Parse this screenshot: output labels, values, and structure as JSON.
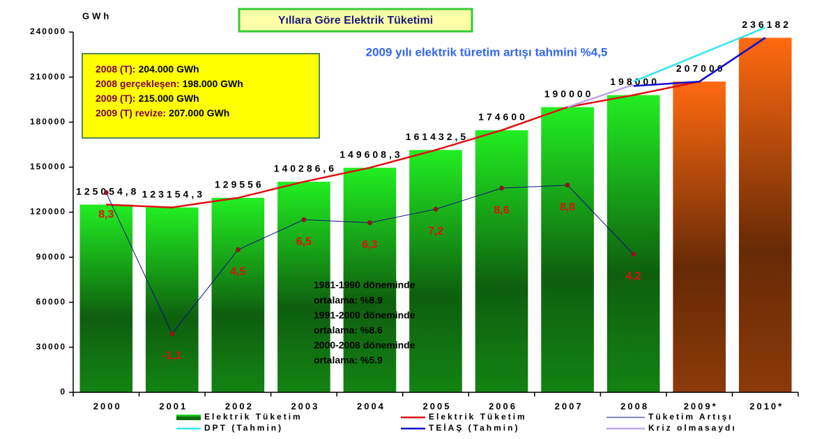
{
  "chart_data": {
    "type": "bar",
    "title": "Yıllara Göre Elektrik Tüketimi",
    "subtitle": "2009 yılı elektrik türetim artışı tahmini %4,5",
    "y_label": "GWh",
    "categories": [
      "2000",
      "2001",
      "2002",
      "2003",
      "2004",
      "2005",
      "2006",
      "2007",
      "2008",
      "2009*",
      "2010*"
    ],
    "ylim": [
      0,
      240000
    ],
    "yticks": [
      0,
      30000,
      60000,
      90000,
      120000,
      150000,
      180000,
      210000,
      240000
    ],
    "y2lim": [
      -5,
      19
    ],
    "series": [
      {
        "name": "Elektrik Tüketim",
        "type": "bar",
        "colors": [
          "#22ee22",
          "#22ee22",
          "#22ee22",
          "#22ee22",
          "#22ee22",
          "#22ee22",
          "#22ee22",
          "#22ee22",
          "#22ee22",
          "#ff6a10",
          "#ff6a10"
        ],
        "values": [
          125054.8,
          123154.3,
          129556,
          140286.6,
          149608.3,
          161432.5,
          174600,
          190000,
          198000,
          207000,
          236182
        ],
        "value_labels": [
          "125054,8",
          "123154,3",
          "129556",
          "140286,6",
          "149608,3",
          "161432,5",
          "174600",
          "190000",
          "198000",
          "207000",
          "236182"
        ]
      },
      {
        "name": "Elektrik Tüketim",
        "type": "line",
        "color": "#e01010",
        "values": [
          125054.8,
          123154.3,
          129556,
          140286.6,
          149608.3,
          161432.5,
          174600,
          190000,
          198000,
          207000,
          236182
        ]
      },
      {
        "name": "Tüketim Artışı",
        "type": "line",
        "color": "#101080",
        "marker_color": "#8b1a1a",
        "axis": "y2",
        "values": [
          8.3,
          -1.1,
          4.5,
          6.5,
          6.3,
          7.2,
          8.6,
          8.8,
          4.2,
          null,
          null
        ],
        "value_labels": [
          "8,3",
          "-1,1",
          "4,5",
          "6,5",
          "6,3",
          "7,2",
          "8,6",
          "8,8",
          "4,2",
          null,
          null
        ]
      },
      {
        "name": "DPT (Tahmin)",
        "type": "line",
        "color": "#33e6f0",
        "values": [
          null,
          null,
          null,
          null,
          null,
          null,
          null,
          null,
          207000,
          225000,
          243000
        ]
      },
      {
        "name": "TEİAŞ (Tahmin)",
        "type": "line",
        "color": "#1010d0",
        "values": [
          null,
          null,
          null,
          null,
          null,
          null,
          null,
          null,
          204000,
          207000,
          236182
        ]
      },
      {
        "name": "Kriz olmasaydı",
        "type": "line",
        "color": "#c0a0f0",
        "values": [
          null,
          null,
          null,
          null,
          null,
          null,
          null,
          190000,
          205000,
          null,
          null
        ]
      }
    ],
    "info_box": [
      {
        "label": "2008 (T):",
        "value": "204.000 GWh"
      },
      {
        "label": "2008 gerçekleşen:",
        "value": "198.000 GWh"
      },
      {
        "label": "2009 (T):",
        "value": "215.000 GWh"
      },
      {
        "label": "2009 (T) revize:",
        "value": "207.000 GWh"
      }
    ],
    "note": [
      "1981-1990 döneminde",
      "ortalama: %8.9",
      "1991-2000 döneminde",
      "ortalama: %8.6",
      "2000-2008 döneminde",
      "ortalama: %5.9"
    ]
  }
}
